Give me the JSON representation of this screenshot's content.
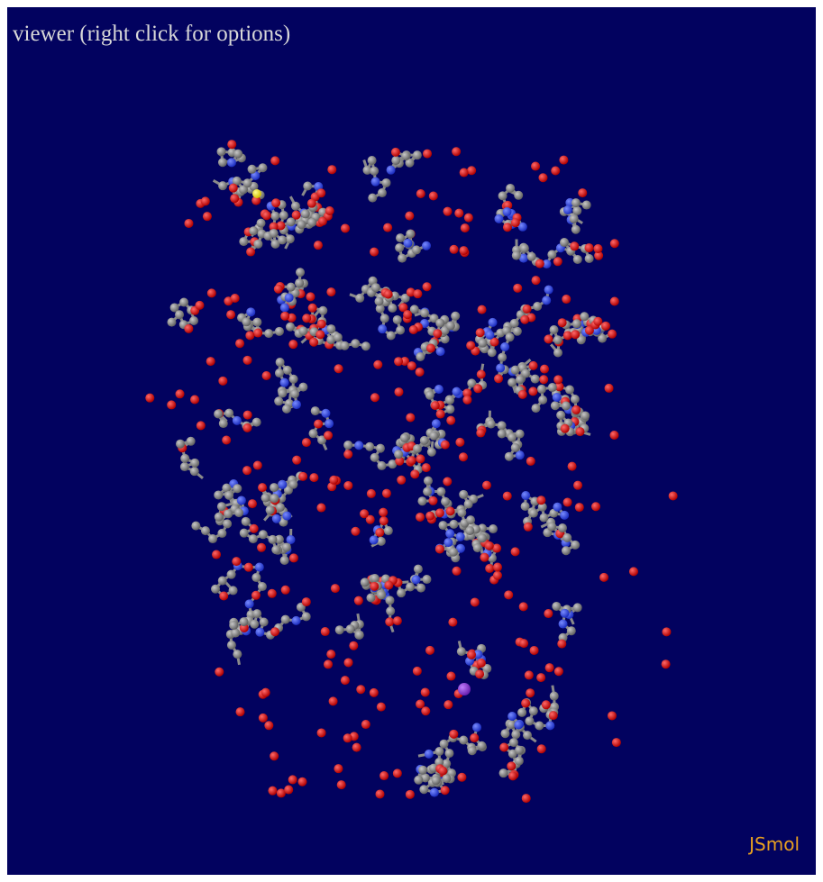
{
  "viewer": {
    "title": "viewer (right click for options)",
    "logo": "JSmol"
  }
}
